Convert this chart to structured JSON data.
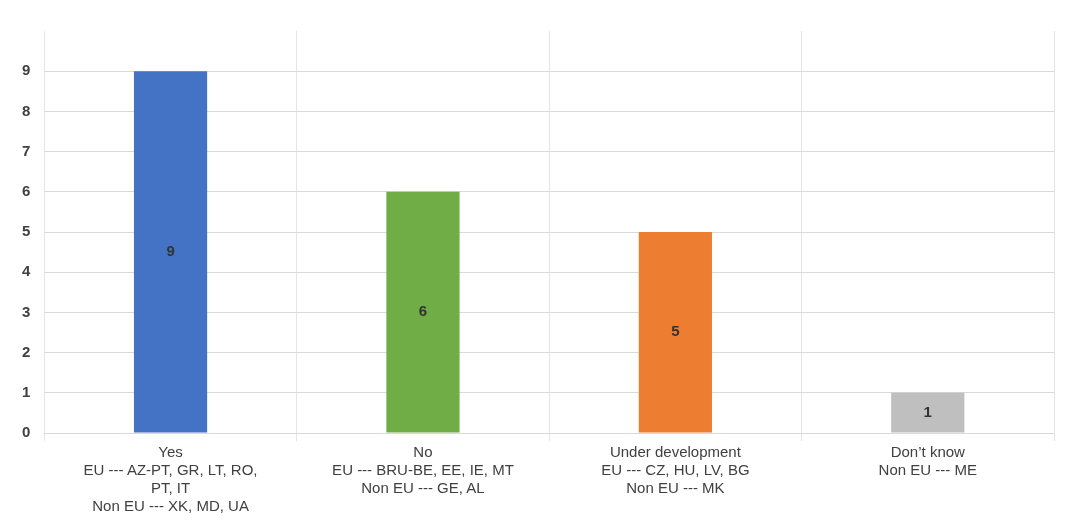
{
  "chart_data": {
    "type": "bar",
    "categories": [
      "Yes\nEU --- AZ-PT, GR, LT, RO,\nPT, IT\nNon EU --- XK, MD, UA",
      "No\nEU --- BRU-BE, EE, IE, MT\nNon EU --- GE, AL",
      "Under development\nEU --- CZ, HU, LV, BG\nNon EU --- MK",
      "Don’t know\nNon EU --- ME"
    ],
    "values": [
      9,
      6,
      5,
      1
    ],
    "colors": [
      "#4472c4",
      "#70ad47",
      "#ed7d31",
      "#bfbfbf"
    ],
    "ylim": [
      0,
      10
    ],
    "yticks": [
      0,
      1,
      2,
      3,
      4,
      5,
      6,
      7,
      8,
      9
    ],
    "grid": true,
    "data_labels": true,
    "legend": false
  }
}
